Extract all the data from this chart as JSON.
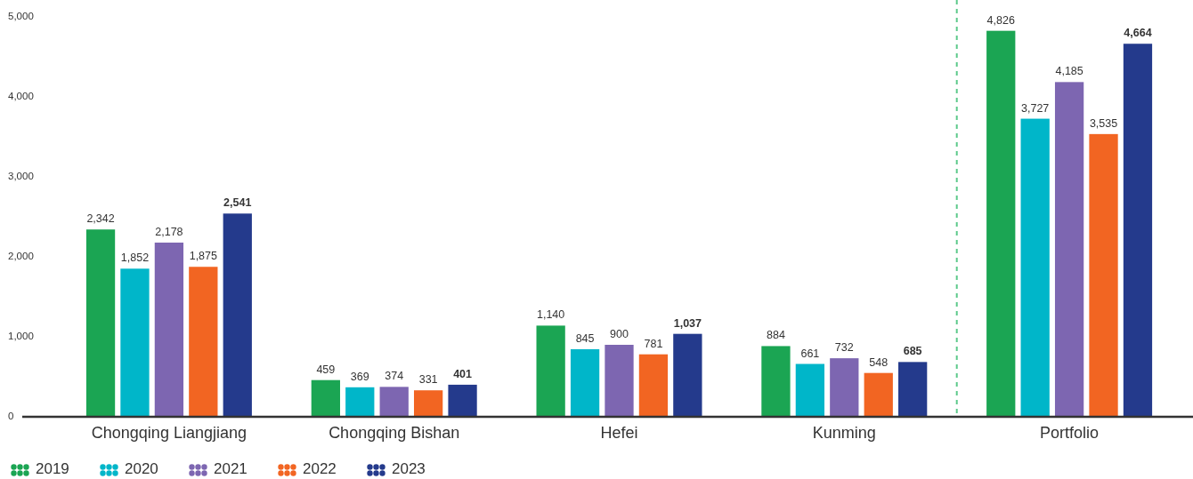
{
  "chart_data": {
    "type": "bar",
    "categories": [
      "Chongqing Liangjiang",
      "Chongqing Bishan",
      "Hefei",
      "Kunming",
      "Portfolio"
    ],
    "series": [
      {
        "name": "2019",
        "color": "#1ba553",
        "values": [
          2342,
          459,
          1140,
          884,
          4826
        ],
        "value_labels": [
          "2,342",
          "459",
          "1,140",
          "884",
          "4,826"
        ]
      },
      {
        "name": "2020",
        "color": "#00b6c9",
        "values": [
          1852,
          369,
          845,
          661,
          3727
        ],
        "value_labels": [
          "1,852",
          "369",
          "845",
          "661",
          "3,727"
        ]
      },
      {
        "name": "2021",
        "color": "#7d66b1",
        "values": [
          2178,
          374,
          900,
          732,
          4185
        ],
        "value_labels": [
          "2,178",
          "374",
          "900",
          "732",
          "4,185"
        ]
      },
      {
        "name": "2022",
        "color": "#f26522",
        "values": [
          1875,
          331,
          781,
          548,
          3535
        ],
        "value_labels": [
          "1,875",
          "331",
          "781",
          "548",
          "3,535"
        ]
      },
      {
        "name": "2023",
        "color": "#243a8c",
        "values": [
          2541,
          401,
          1037,
          685,
          4664
        ],
        "value_labels": [
          "2,541",
          "401",
          "1,037",
          "685",
          "4,664"
        ]
      }
    ],
    "ylim": [
      0,
      5000
    ],
    "yticks": [
      0,
      {
        "value": 1000,
        "label": "1,000"
      },
      {
        "value": 2000,
        "label": "2,000"
      },
      {
        "value": 3000,
        "label": "3,000"
      },
      {
        "value": 4000,
        "label": "4,000"
      },
      {
        "value": 5000,
        "label": "5,000"
      }
    ],
    "legend": "bottom left"
  }
}
